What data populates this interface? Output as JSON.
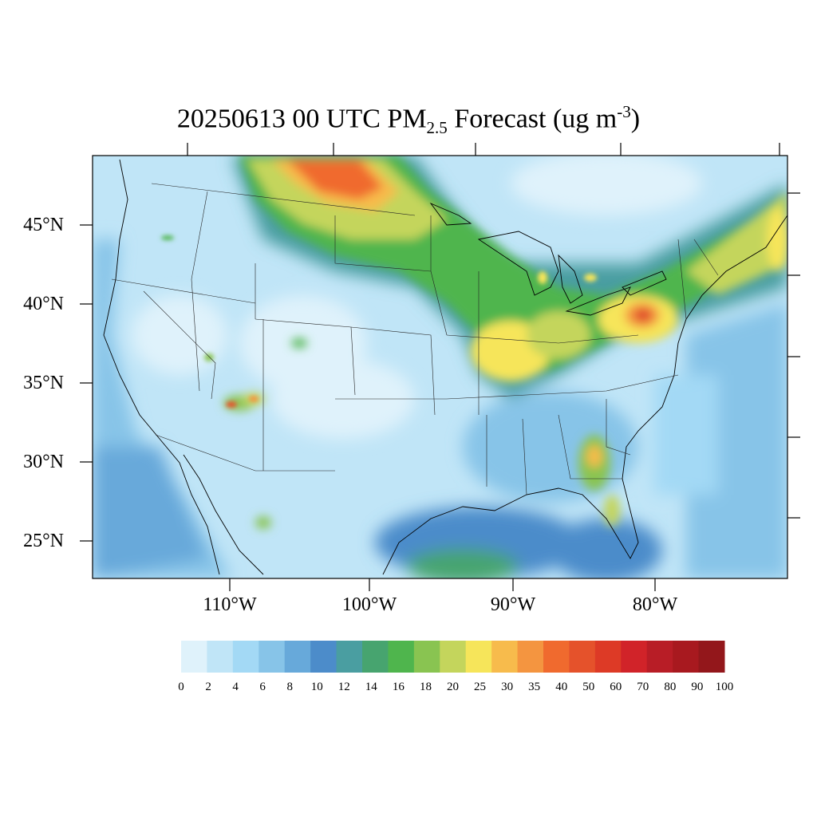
{
  "title": {
    "main": "20250613 00 UTC PM",
    "subscript": "2.5",
    "middle": " Forecast (ug m",
    "superscript": "-3",
    "end": ")"
  },
  "map": {
    "projection": "Lambert Conformal",
    "region": "Contiguous United States",
    "variable": "PM2.5",
    "units": "ug m-3",
    "lat_labels": [
      "45°N",
      "40°N",
      "35°N",
      "30°N",
      "25°N"
    ],
    "lon_labels": [
      "110°W",
      "100°W",
      "90°W",
      "80°W"
    ],
    "features": [
      {
        "name": "Canadian wildfire smoke plume (Montana / North Dakota border)",
        "level": "35-50"
      },
      {
        "name": "Smoke band across Great Lakes to Northeast",
        "level": "18-30"
      },
      {
        "name": "Illinois / Indiana / Ohio Valley hotspot",
        "level": "25-30"
      },
      {
        "name": "Central Pennsylvania hotspot",
        "level": "40-50"
      },
      {
        "name": "Arizona fire hotspots",
        "level": "35-50"
      },
      {
        "name": "Georgia / North Florida hotspots",
        "level": "25-35"
      },
      {
        "name": "Gulf of Mexico moderate band",
        "level": "14-18"
      }
    ]
  },
  "colorbar": {
    "labels": [
      "0",
      "2",
      "4",
      "6",
      "8",
      "10",
      "12",
      "14",
      "16",
      "18",
      "20",
      "25",
      "30",
      "35",
      "40",
      "50",
      "60",
      "70",
      "80",
      "90",
      "100"
    ],
    "colors": [
      "#dff2fb",
      "#c0e5f7",
      "#a3d9f5",
      "#87c4e8",
      "#67a9da",
      "#4c8cca",
      "#4a9ea1",
      "#47a46f",
      "#4fb54d",
      "#89c451",
      "#c4d55c",
      "#f6e55a",
      "#f7bb4c",
      "#f49540",
      "#f06a2e",
      "#e5522b",
      "#dd3a26",
      "#d12329",
      "#b81d26",
      "#a8191f",
      "#93171b"
    ]
  }
}
